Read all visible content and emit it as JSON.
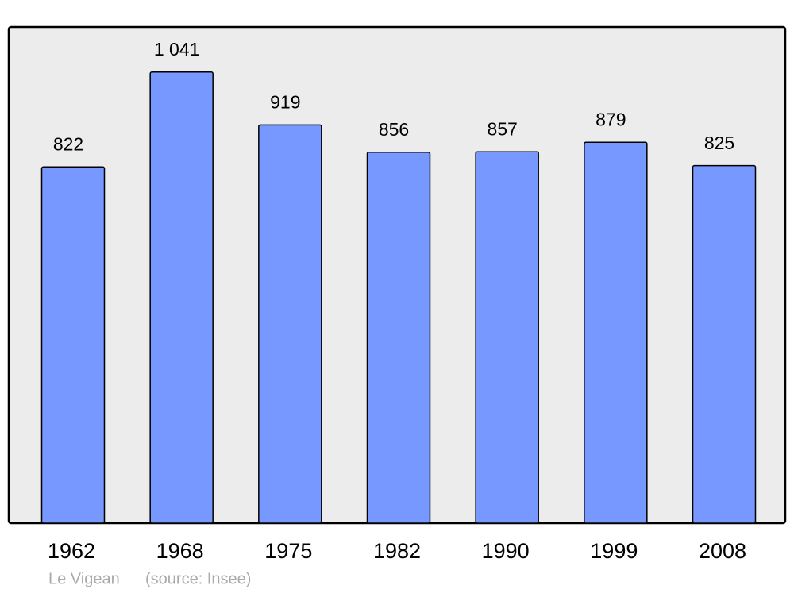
{
  "chart_data": {
    "type": "bar",
    "categories": [
      "1962",
      "1968",
      "1975",
      "1982",
      "1990",
      "1999",
      "2008"
    ],
    "values": [
      822,
      1041,
      919,
      856,
      857,
      879,
      825
    ],
    "value_labels": [
      "822",
      "1 041",
      "919",
      "856",
      "857",
      "879",
      "825"
    ],
    "color": "#7799ff",
    "ylim": [
      0,
      1145
    ],
    "place": "Le Vigean",
    "source": "(source: Insee)"
  }
}
